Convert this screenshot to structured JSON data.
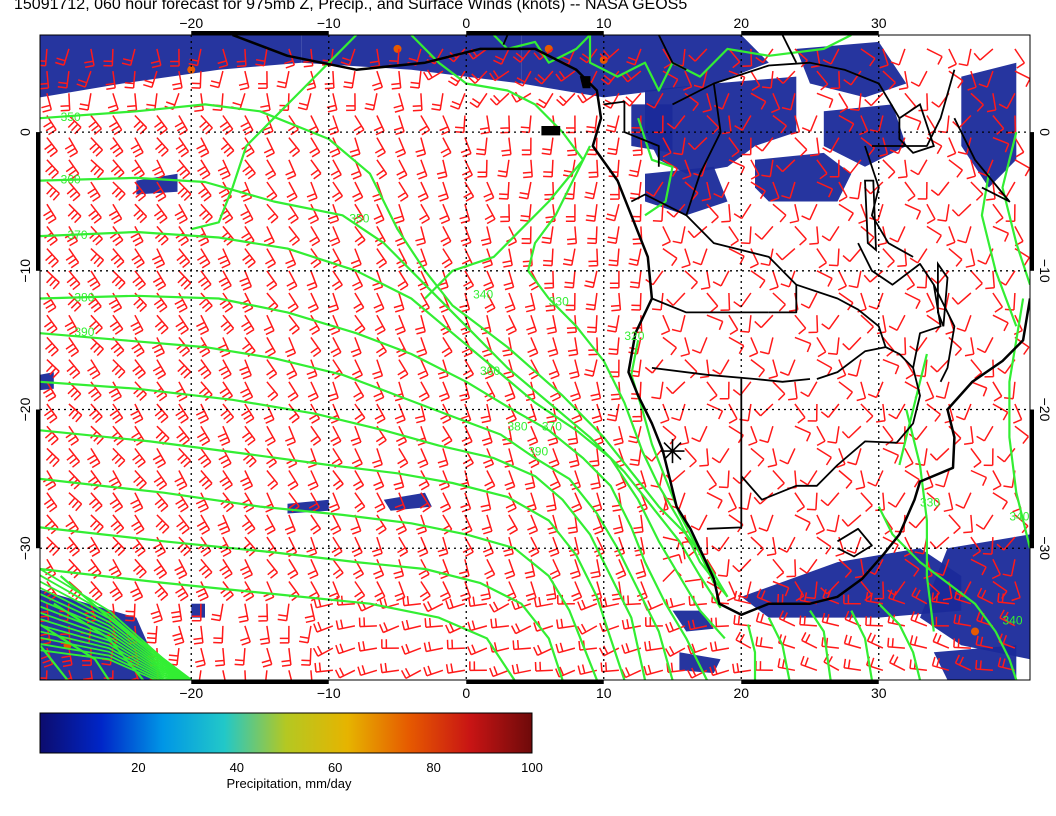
{
  "title": "15091712, 060 hour forecast for 975mb Z, Precip., and Surface Winds (knots) -- NASA GEOS5",
  "map": {
    "lon_range": [
      -31,
      41
    ],
    "lat_range": [
      -39.5,
      7
    ],
    "lon_ticks": [
      {
        "value": -20,
        "label": "−20"
      },
      {
        "value": -10,
        "label": "−10"
      },
      {
        "value": 0,
        "label": "0"
      },
      {
        "value": 10,
        "label": "10"
      },
      {
        "value": 20,
        "label": "20"
      },
      {
        "value": 30,
        "label": "30"
      }
    ],
    "lat_ticks": [
      {
        "value": 0,
        "label": "0"
      },
      {
        "value": -10,
        "label": "−10"
      },
      {
        "value": -20,
        "label": "−20"
      },
      {
        "value": -30,
        "label": "−30"
      }
    ],
    "marker": {
      "name": "location-marker",
      "lon": 15,
      "lat": -23
    },
    "contour_labels": [
      {
        "text": "350",
        "lon": -29.5,
        "lat": 0.8
      },
      {
        "text": "360",
        "lon": -29.5,
        "lat": -3.7
      },
      {
        "text": "370",
        "lon": -29.0,
        "lat": -7.7
      },
      {
        "text": "380",
        "lon": -28.5,
        "lat": -12.2
      },
      {
        "text": "390",
        "lon": -28.5,
        "lat": -14.7
      },
      {
        "text": "350",
        "lon": -8.5,
        "lat": -6.5
      },
      {
        "text": "340",
        "lon": 0.5,
        "lat": -12.0
      },
      {
        "text": "330",
        "lon": 6.0,
        "lat": -12.5
      },
      {
        "text": "360",
        "lon": 1.0,
        "lat": -17.5
      },
      {
        "text": "370",
        "lon": 5.5,
        "lat": -21.5
      },
      {
        "text": "380",
        "lon": 3.0,
        "lat": -21.5
      },
      {
        "text": "390",
        "lon": 4.5,
        "lat": -23.3
      },
      {
        "text": "320",
        "lon": 11.5,
        "lat": -15.0
      },
      {
        "text": "330",
        "lon": 33.0,
        "lat": -27.0
      },
      {
        "text": "340",
        "lon": 39.5,
        "lat": -28.0
      },
      {
        "text": "340",
        "lon": 39.0,
        "lat": -35.5
      }
    ]
  },
  "colorbar": {
    "title": "Precipitation, mm/day",
    "range": [
      0,
      100
    ],
    "stops": [
      "#0c0c6e",
      "#0026c8",
      "#0096e6",
      "#22c8c8",
      "#b4c822",
      "#e6b400",
      "#e65a00",
      "#c81414",
      "#6e0a0a"
    ],
    "tick_labels": [
      {
        "value": 20,
        "label": "20"
      },
      {
        "value": 40,
        "label": "40"
      },
      {
        "value": 60,
        "label": "60"
      },
      {
        "value": 80,
        "label": "80"
      },
      {
        "value": 100,
        "label": "100"
      }
    ]
  },
  "colors": {
    "wind_barbs": "#ff1a1a",
    "height_contours": "#33ee33",
    "precip_low": "#1a2a9a",
    "coastlines": "#000000",
    "grid": "#000000"
  }
}
